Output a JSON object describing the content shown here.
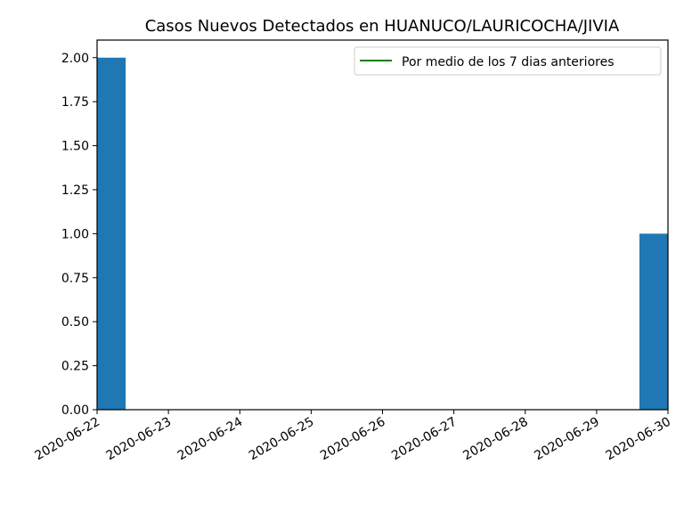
{
  "chart_data": {
    "type": "bar",
    "title": "Casos Nuevos Detectados en HUANUCO/LAURICOCHA/JIVIA",
    "xlabel": "",
    "ylabel": "",
    "x": [
      "2020-06-22",
      "2020-06-23",
      "2020-06-24",
      "2020-06-25",
      "2020-06-26",
      "2020-06-27",
      "2020-06-28",
      "2020-06-29",
      "2020-06-30"
    ],
    "values": [
      2,
      0,
      0,
      0,
      0,
      0,
      0,
      0,
      1
    ],
    "ylim": [
      0,
      2.1
    ],
    "yticks": [
      "0.00",
      "0.25",
      "0.50",
      "0.75",
      "1.00",
      "1.25",
      "1.50",
      "1.75",
      "2.00"
    ],
    "xticks": [
      "2020-06-22",
      "2020-06-23",
      "2020-06-24",
      "2020-06-25",
      "2020-06-26",
      "2020-06-27",
      "2020-06-28",
      "2020-06-29",
      "2020-06-30"
    ],
    "legend": {
      "position": "top-right",
      "entries": [
        {
          "label": "Por medio de los 7 dias anteriores",
          "color": "#008000",
          "kind": "line"
        }
      ]
    },
    "bar_color": "#1f77b4",
    "grid": false
  }
}
